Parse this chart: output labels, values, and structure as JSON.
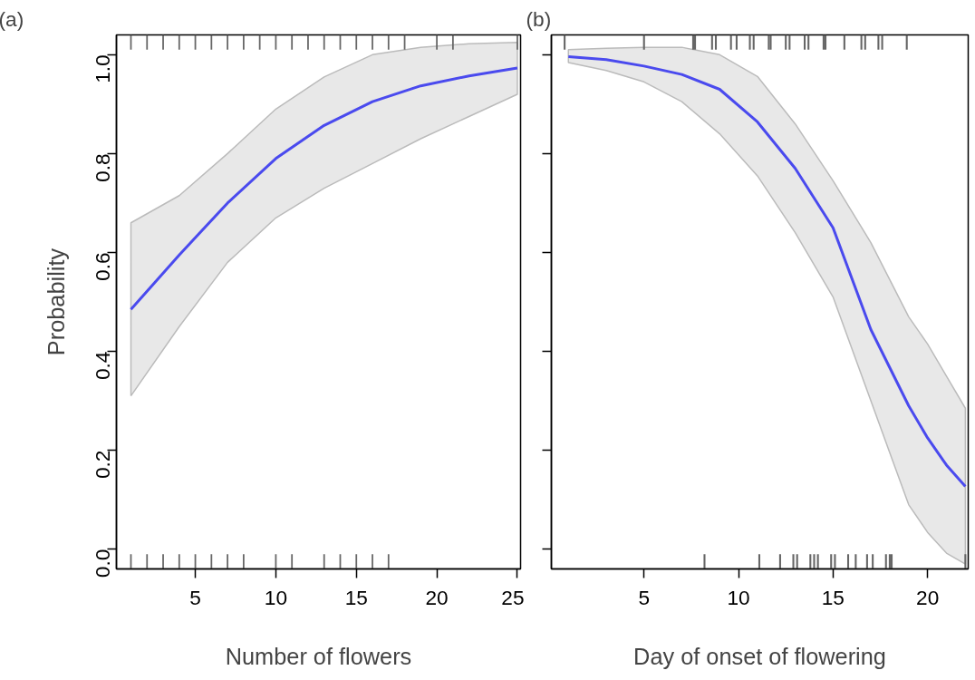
{
  "chart_data": [
    {
      "type": "line",
      "title": "(a)",
      "xlabel": "Number of flowers",
      "ylabel": "Probability",
      "xlim": [
        0.1,
        25.2
      ],
      "ylim": [
        -0.04,
        1.04
      ],
      "xticks": [
        5,
        10,
        15,
        20,
        25
      ],
      "yticks": [
        {
          "value": 0,
          "label": "0.0"
        },
        {
          "value": 0.2,
          "label": "0.2"
        },
        {
          "value": 0.4,
          "label": "0.4"
        },
        {
          "value": 0.6,
          "label": "0.6"
        },
        {
          "value": 0.8,
          "label": "0.8"
        },
        {
          "value": 1,
          "label": "1.0"
        }
      ],
      "grid": false,
      "line_style": "solid",
      "series": [
        {
          "color": "#4a4aee",
          "x": [
            1,
            4,
            7,
            10,
            13,
            16,
            19,
            22,
            25
          ],
          "values": [
            0.485,
            0.595,
            0.7,
            0.79,
            0.857,
            0.905,
            0.937,
            0.957,
            0.973
          ],
          "lower": [
            0.31,
            0.45,
            0.58,
            0.67,
            0.73,
            0.78,
            0.83,
            0.875,
            0.92
          ],
          "upper": [
            0.66,
            0.715,
            0.8,
            0.89,
            0.955,
            1.0,
            1.015,
            1.022,
            1.025
          ]
        },
        {
          "type": "bar",
          "color": "#666666",
          "x": [
            1,
            2,
            3,
            4,
            5,
            6,
            7,
            8,
            9,
            10,
            11,
            12,
            13,
            14,
            15,
            16,
            17,
            18,
            20,
            21,
            25
          ],
          "base": [
            1.01,
            1.01,
            1.01,
            1.01,
            1.01,
            1.01,
            1.01,
            1.01,
            1.01,
            1.01,
            1.01,
            1.01,
            1.01,
            1.01,
            1.01,
            1.01,
            1.01,
            1.01,
            1.01,
            1.01,
            1.01
          ],
          "values": [
            0.03,
            0.03,
            0.03,
            0.03,
            0.03,
            0.03,
            0.03,
            0.03,
            0.03,
            0.03,
            0.03,
            0.03,
            0.03,
            0.03,
            0.03,
            0.03,
            0.03,
            0.03,
            0.03,
            0.03,
            0.03
          ]
        },
        {
          "type": "bar",
          "color": "#666666",
          "x": [
            1,
            2,
            3,
            4,
            5,
            6,
            7,
            8,
            10,
            11,
            13,
            14,
            15,
            16,
            17
          ],
          "base": [
            -0.04,
            -0.04,
            -0.04,
            -0.04,
            -0.04,
            -0.04,
            -0.04,
            -0.04,
            -0.04,
            -0.04,
            -0.04,
            -0.04,
            -0.04,
            -0.04,
            -0.04
          ],
          "values": [
            0.03,
            0.03,
            0.03,
            0.03,
            0.03,
            0.03,
            0.03,
            0.03,
            0.03,
            0.03,
            0.03,
            0.03,
            0.03,
            0.03,
            0.03
          ]
        }
      ]
    },
    {
      "type": "line",
      "title": "(b)",
      "xlabel": "Day of onset of flowering",
      "xlim": [
        0.1,
        22.15
      ],
      "ylim": [
        -0.04,
        1.04
      ],
      "xticks": [
        5,
        10,
        15,
        20
      ],
      "yticks": [
        0,
        0.2,
        0.4,
        0.6,
        0.8,
        1
      ],
      "tick_labels": "x",
      "grid": false,
      "line_style": "solid",
      "series": [
        {
          "color": "#4a4aee",
          "x": [
            1,
            3,
            5,
            7,
            9,
            11,
            13,
            15,
            17,
            19,
            20,
            21,
            22
          ],
          "values": [
            0.996,
            0.99,
            0.977,
            0.96,
            0.93,
            0.864,
            0.77,
            0.65,
            0.444,
            0.29,
            0.225,
            0.17,
            0.127
          ],
          "lower": [
            0.984,
            0.968,
            0.945,
            0.905,
            0.84,
            0.755,
            0.64,
            0.51,
            0.3,
            0.09,
            0.034,
            -0.008,
            -0.03
          ],
          "upper": [
            1.01,
            1.013,
            1.015,
            1.015,
            1.0,
            0.956,
            0.86,
            0.745,
            0.62,
            0.47,
            0.415,
            0.35,
            0.285
          ]
        },
        {
          "type": "bar",
          "color": "#666666",
          "x": [
            0.8,
            5.0,
            7.6,
            7.7,
            8.6,
            8.8,
            9.6,
            9.9,
            10.6,
            10.8,
            11.6,
            11.7,
            12.5,
            12.7,
            13.5,
            13.7,
            14.5,
            14.6,
            15.6,
            16.5,
            16.7,
            17.4,
            17.6,
            18.9
          ],
          "base": [
            1.01,
            1.01,
            1.01,
            1.01,
            1.01,
            1.01,
            1.01,
            1.01,
            1.01,
            1.01,
            1.01,
            1.01,
            1.01,
            1.01,
            1.01,
            1.01,
            1.01,
            1.01,
            1.01,
            1.01,
            1.01,
            1.01,
            1.01,
            1.01
          ],
          "values": [
            0.03,
            0.03,
            0.03,
            0.03,
            0.03,
            0.03,
            0.03,
            0.03,
            0.03,
            0.03,
            0.03,
            0.03,
            0.03,
            0.03,
            0.03,
            0.03,
            0.03,
            0.03,
            0.03,
            0.03,
            0.03,
            0.03,
            0.03,
            0.03
          ]
        },
        {
          "type": "bar",
          "color": "#666666",
          "x": [
            8.2,
            11.1,
            12.2,
            12.9,
            13.1,
            13.8,
            14.0,
            14.2,
            14.9,
            15.1,
            15.8,
            16.2,
            16.8,
            17.1,
            17.8,
            18.0,
            18.1,
            22.0
          ],
          "base": [
            -0.04,
            -0.04,
            -0.04,
            -0.04,
            -0.04,
            -0.04,
            -0.04,
            -0.04,
            -0.04,
            -0.04,
            -0.04,
            -0.04,
            -0.04,
            -0.04,
            -0.04,
            -0.04,
            -0.04,
            -0.04
          ],
          "values": [
            0.03,
            0.03,
            0.03,
            0.03,
            0.03,
            0.03,
            0.03,
            0.03,
            0.03,
            0.03,
            0.03,
            0.03,
            0.03,
            0.03,
            0.03,
            0.03,
            0.03,
            0.03
          ]
        }
      ]
    }
  ]
}
